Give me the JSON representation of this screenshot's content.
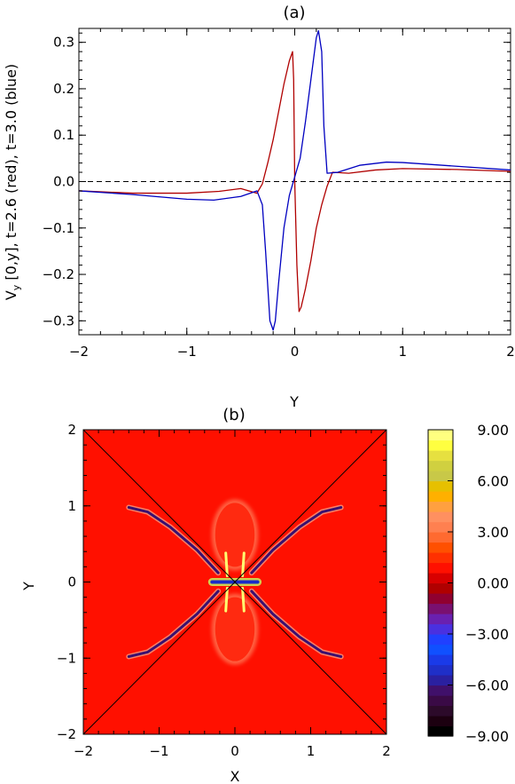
{
  "chart_data": [
    {
      "type": "line",
      "title": "(a)",
      "xlabel": "Y",
      "ylabel": "V_y [0,y], t=2.6 (red), t=3.0 (blue)",
      "ylabel_prefix": "V",
      "ylabel_sub": "y",
      "ylabel_rest": " [0,y], t=2.6 (red), t=3.0 (blue)",
      "xlim": [
        -2,
        2
      ],
      "ylim": [
        -0.33,
        0.33
      ],
      "xticks": [
        -2,
        -1,
        0,
        1,
        2
      ],
      "xtick_labels": [
        "−2",
        "−1",
        "0",
        "1",
        "2"
      ],
      "yticks": [
        -0.3,
        -0.2,
        -0.1,
        0.0,
        0.1,
        0.2,
        0.3
      ],
      "ytick_labels": [
        "−0.3",
        "−0.2",
        "−0.1",
        "0.0",
        "0.1",
        "0.2",
        "0.3"
      ],
      "reference_line": {
        "y": 0.0,
        "style": "dashed"
      },
      "grid": false,
      "series": [
        {
          "color": "#b00000",
          "x": [
            -2.0,
            -1.5,
            -1.0,
            -0.7,
            -0.5,
            -0.35,
            -0.3,
            -0.25,
            -0.2,
            -0.15,
            -0.1,
            -0.05,
            -0.02,
            -0.01,
            0.0,
            0.02,
            0.04,
            0.06,
            0.1,
            0.15,
            0.2,
            0.25,
            0.3,
            0.35,
            0.5,
            0.75,
            1.0,
            1.5,
            2.0
          ],
          "y": [
            -0.02,
            -0.025,
            -0.025,
            -0.021,
            -0.015,
            -0.025,
            -0.005,
            0.04,
            0.09,
            0.15,
            0.21,
            0.26,
            0.28,
            0.22,
            0.0,
            -0.18,
            -0.28,
            -0.27,
            -0.23,
            -0.17,
            -0.1,
            -0.05,
            -0.01,
            0.02,
            0.018,
            0.025,
            0.028,
            0.026,
            0.022
          ]
        },
        {
          "color": "#0000c0",
          "x": [
            -2.0,
            -1.5,
            -1.0,
            -0.75,
            -0.5,
            -0.35,
            -0.3,
            -0.27,
            -0.23,
            -0.2,
            -0.18,
            -0.15,
            -0.1,
            -0.05,
            0.0,
            0.05,
            0.1,
            0.15,
            0.2,
            0.22,
            0.25,
            0.27,
            0.3,
            0.4,
            0.6,
            0.85,
            1.0,
            1.5,
            2.0
          ],
          "y": [
            -0.02,
            -0.028,
            -0.038,
            -0.04,
            -0.032,
            -0.02,
            -0.05,
            -0.15,
            -0.3,
            -0.32,
            -0.3,
            -0.22,
            -0.1,
            -0.03,
            0.01,
            0.05,
            0.13,
            0.22,
            0.31,
            0.325,
            0.28,
            0.12,
            0.018,
            0.02,
            0.035,
            0.042,
            0.041,
            0.033,
            0.025
          ]
        }
      ]
    },
    {
      "type": "heatmap",
      "title": "(b)",
      "xlabel": "X",
      "ylabel": "Y",
      "xlim": [
        -2,
        2
      ],
      "ylim": [
        -2,
        2
      ],
      "xticks": [
        -2,
        -1,
        0,
        1,
        2
      ],
      "xtick_labels": [
        "−2",
        "−1",
        "0",
        "1",
        "2"
      ],
      "yticks": [
        -2,
        -1,
        0,
        1,
        2
      ],
      "ytick_labels": [
        "−2",
        "−1",
        "0",
        "1",
        "2"
      ],
      "background_value": 1.0,
      "separatrices": [
        [
          [
            -2,
            -2
          ],
          [
            2,
            2
          ]
        ],
        [
          [
            -2,
            2
          ],
          [
            2,
            -2
          ]
        ]
      ],
      "colorbar": {
        "range": [
          -9,
          9
        ],
        "ticks": [
          9,
          6,
          3,
          0,
          -3,
          -6,
          -9
        ],
        "tick_labels": [
          "9.00",
          "6.00",
          "3.00",
          "0.00",
          "−3.00",
          "−6.00",
          "−9.00"
        ],
        "colors": [
          "#000000",
          "#1c0010",
          "#2c0a2a",
          "#3a0a46",
          "#40106a",
          "#2a20a0",
          "#1f2fc8",
          "#1a3ae8",
          "#1050ff",
          "#2040ff",
          "#4a30e0",
          "#6a20b0",
          "#7a1070",
          "#900030",
          "#b00000",
          "#d80000",
          "#ff1000",
          "#ff3000",
          "#ff5000",
          "#ff6a30",
          "#ff8050",
          "#ff9060",
          "#ffa040",
          "#ffb000",
          "#e6c000",
          "#c8c848",
          "#d0d040",
          "#e6e040",
          "#ffff40",
          "#ffff80"
        ]
      },
      "features": [
        {
          "kind": "lobe",
          "cx": 0.0,
          "cy": 0.62,
          "rx": 0.26,
          "ry": 0.42,
          "color": "#ff2a10"
        },
        {
          "kind": "lobe",
          "cx": 0.0,
          "cy": -0.62,
          "rx": 0.26,
          "ry": 0.42,
          "color": "#ff2a10"
        },
        {
          "kind": "sheet",
          "color": "#1a2ac8",
          "points": [
            [
              -0.3,
              0.0
            ],
            [
              0.3,
              0.0
            ]
          ]
        },
        {
          "kind": "arc",
          "color": "#3a1070",
          "points": [
            [
              -0.22,
              0.12
            ],
            [
              -0.5,
              0.42
            ],
            [
              -0.85,
              0.72
            ],
            [
              -1.15,
              0.92
            ],
            [
              -1.4,
              0.98
            ]
          ]
        },
        {
          "kind": "arc",
          "color": "#3a1070",
          "points": [
            [
              0.22,
              0.12
            ],
            [
              0.5,
              0.42
            ],
            [
              0.85,
              0.72
            ],
            [
              1.15,
              0.92
            ],
            [
              1.4,
              0.98
            ]
          ]
        },
        {
          "kind": "arc",
          "color": "#3a1070",
          "points": [
            [
              -0.22,
              -0.12
            ],
            [
              -0.5,
              -0.42
            ],
            [
              -0.85,
              -0.72
            ],
            [
              -1.15,
              -0.92
            ],
            [
              -1.4,
              -0.98
            ]
          ]
        },
        {
          "kind": "arc",
          "color": "#3a1070",
          "points": [
            [
              0.22,
              -0.12
            ],
            [
              0.5,
              -0.42
            ],
            [
              0.85,
              -0.72
            ],
            [
              1.15,
              -0.92
            ],
            [
              1.4,
              -0.98
            ]
          ]
        },
        {
          "kind": "jet",
          "color": "#ffff70",
          "points": [
            [
              -0.12,
              -0.38
            ],
            [
              -0.1,
              -0.08
            ]
          ]
        },
        {
          "kind": "jet",
          "color": "#ffff70",
          "points": [
            [
              -0.1,
              0.08
            ],
            [
              -0.12,
              0.38
            ]
          ]
        },
        {
          "kind": "jet",
          "color": "#ffff70",
          "points": [
            [
              0.12,
              -0.38
            ],
            [
              0.1,
              -0.08
            ]
          ]
        },
        {
          "kind": "jet",
          "color": "#ffff70",
          "points": [
            [
              0.1,
              0.08
            ],
            [
              0.12,
              0.38
            ]
          ]
        }
      ]
    }
  ]
}
